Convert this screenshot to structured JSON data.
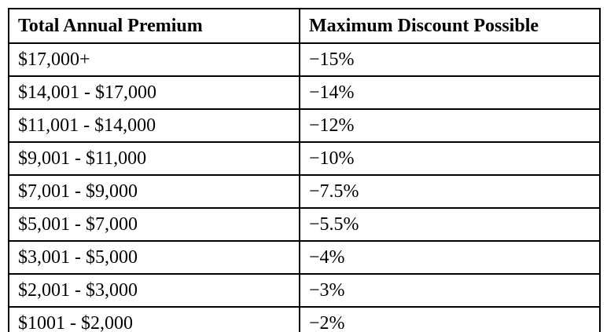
{
  "table": {
    "headers": [
      "Total Annual Premium",
      "Maximum Discount Possible"
    ],
    "rows": [
      [
        "$17,000+",
        "−15%"
      ],
      [
        "$14,001 - $17,000",
        "−14%"
      ],
      [
        "$11,001 - $14,000",
        "−12%"
      ],
      [
        "$9,001 - $11,000",
        "−10%"
      ],
      [
        "$7,001 - $9,000",
        "−7.5%"
      ],
      [
        "$5,001 - $7,000",
        "−5.5%"
      ],
      [
        "$3,001 - $5,000",
        "−4%"
      ],
      [
        "$2,001 - $3,000",
        "−3%"
      ],
      [
        "$1001 - $2,000",
        "−2%"
      ]
    ],
    "border_color": "#000000",
    "background_color": "#ffffff",
    "text_color": "#000000"
  }
}
